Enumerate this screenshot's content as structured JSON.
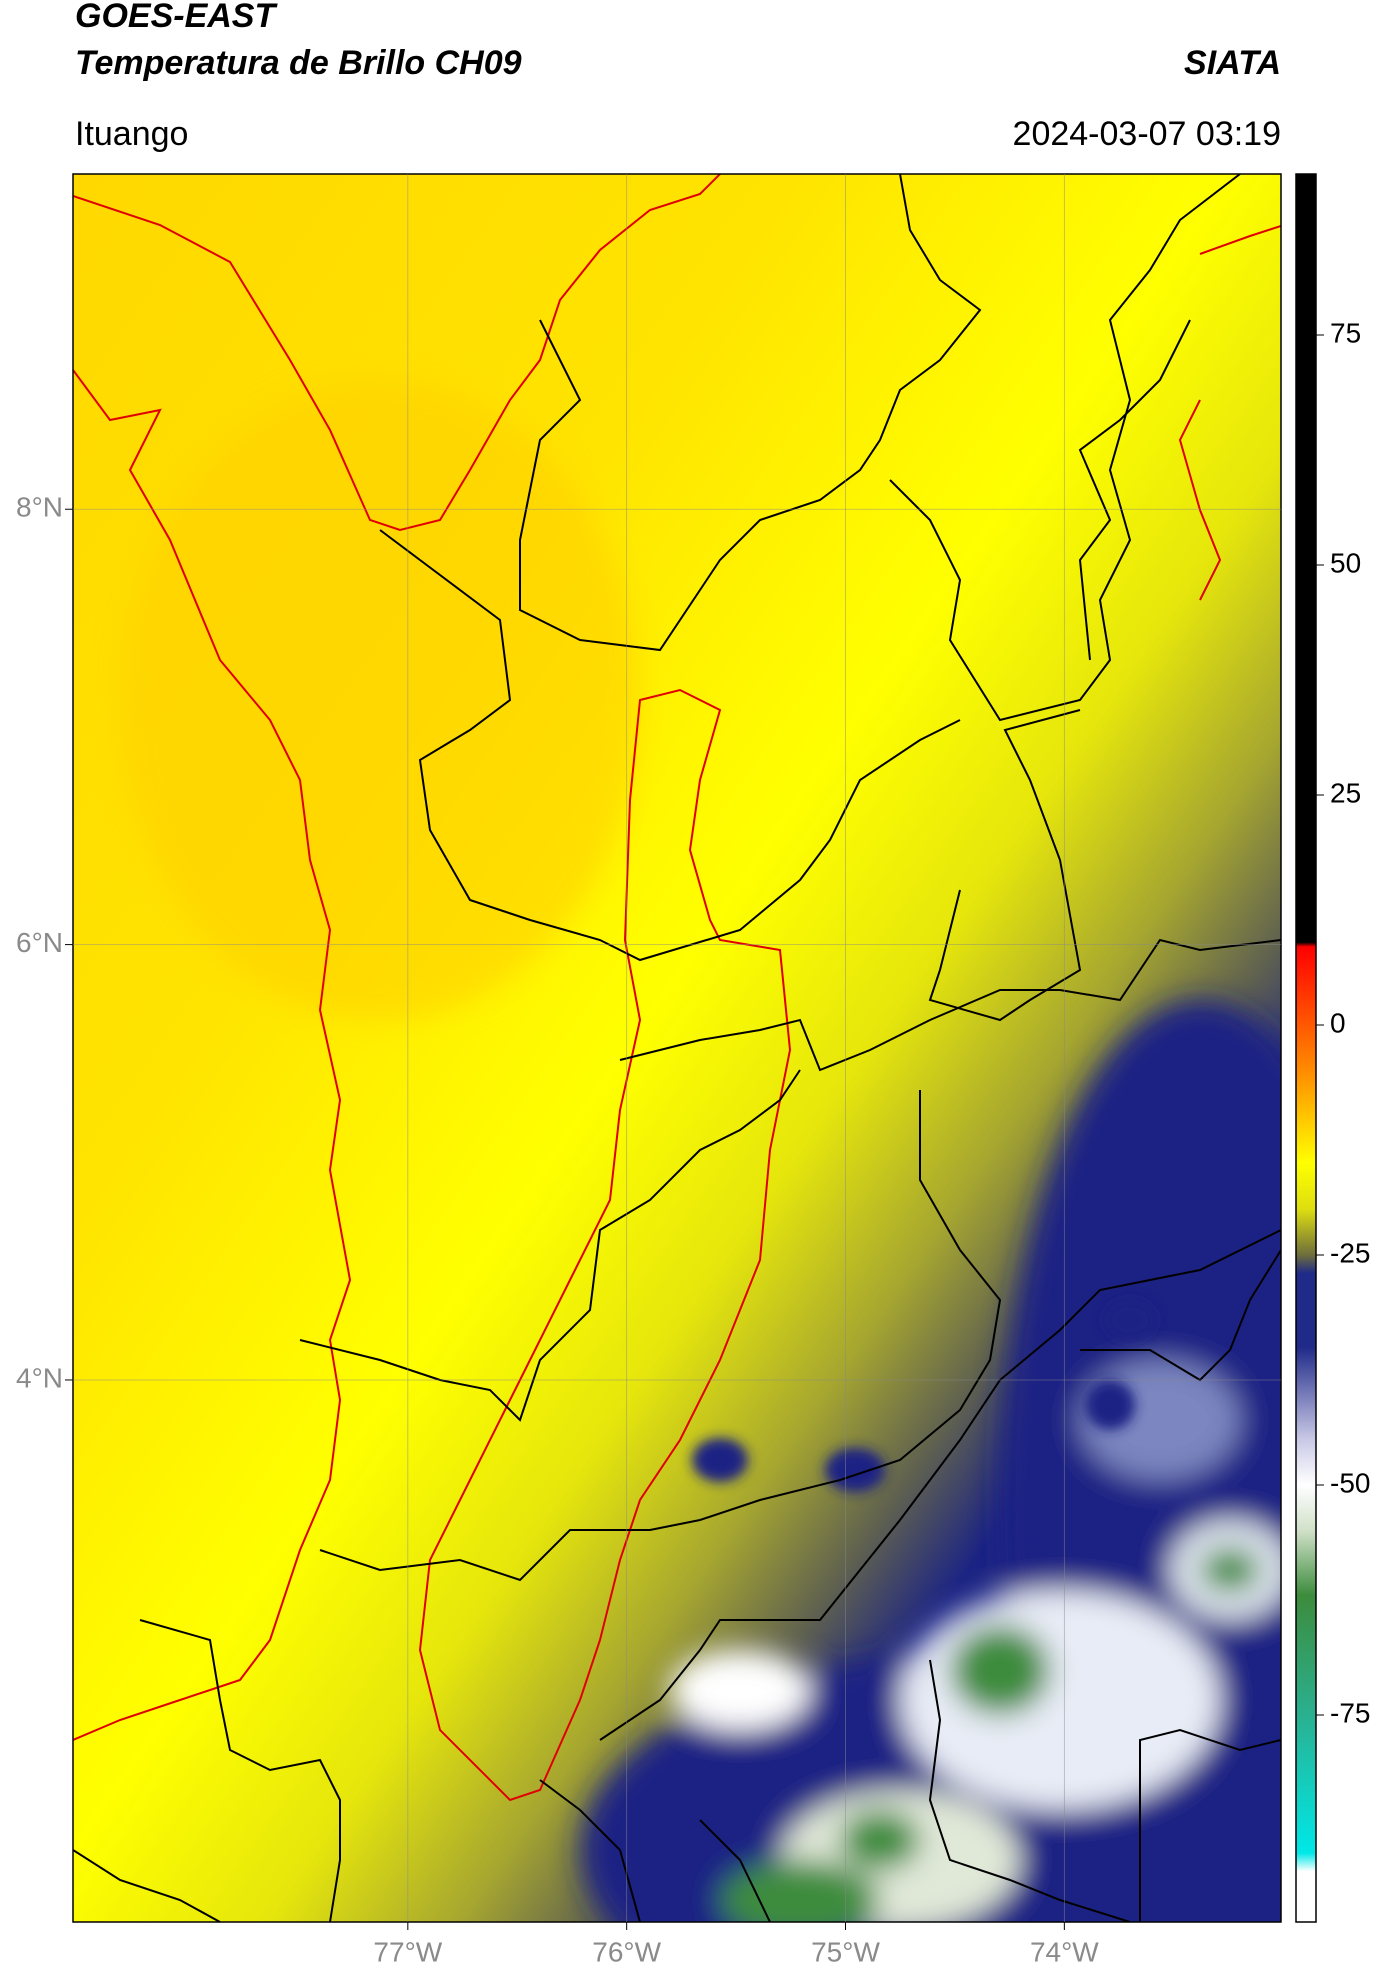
{
  "header": {
    "title": "GOES-EAST",
    "subtitle": "Temperatura de Brillo CH09",
    "agency": "SIATA",
    "location": "Ituango",
    "timestamp": "2024-03-07 03:19"
  },
  "map": {
    "xlim": [
      -78.53,
      -73.01
    ],
    "ylim": [
      1.51,
      9.54
    ],
    "xticks": [
      {
        "value": -77,
        "label": "77°W"
      },
      {
        "value": -76,
        "label": "76°W"
      },
      {
        "value": -75,
        "label": "75°W"
      },
      {
        "value": -74,
        "label": "74°W"
      }
    ],
    "yticks": [
      {
        "value": 8,
        "label": "8°N"
      },
      {
        "value": 6,
        "label": "6°N"
      },
      {
        "value": 4,
        "label": "4°N"
      }
    ],
    "grid": true
  },
  "colorbar": {
    "lim": [
      -97.5,
      92.5
    ],
    "ticks": [
      75,
      50,
      25,
      0,
      -25,
      -50,
      -75
    ],
    "stops": [
      {
        "value": 92.5,
        "color": "#000000"
      },
      {
        "value": 9,
        "color": "#000000"
      },
      {
        "value": 8.5,
        "color": "#ff0000"
      },
      {
        "value": -5,
        "color": "#ff8c00"
      },
      {
        "value": -15,
        "color": "#ffff00"
      },
      {
        "value": -20,
        "color": "#dede10"
      },
      {
        "value": -25,
        "color": "#6e6e3c"
      },
      {
        "value": -27,
        "color": "#202a88"
      },
      {
        "value": -35,
        "color": "#202a88"
      },
      {
        "value": -45,
        "color": "#c8c8e6"
      },
      {
        "value": -50,
        "color": "#ffffff"
      },
      {
        "value": -55,
        "color": "#d0e0c8"
      },
      {
        "value": -62,
        "color": "#3c8c3c"
      },
      {
        "value": -75,
        "color": "#2ab090"
      },
      {
        "value": -90,
        "color": "#00e8e8"
      },
      {
        "value": -92,
        "color": "#ffffff"
      },
      {
        "value": -97.5,
        "color": "#ffffff"
      }
    ]
  }
}
